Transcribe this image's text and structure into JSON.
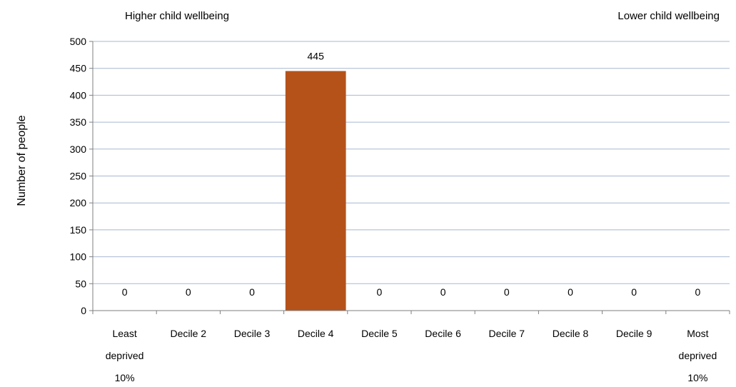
{
  "chart_data": {
    "type": "bar",
    "title": "",
    "xlabel": "",
    "ylabel": "Number of people",
    "annotations": {
      "left": "Higher child wellbeing",
      "right": "Lower child wellbeing"
    },
    "categories": [
      [
        "Least",
        "deprived",
        "10%"
      ],
      [
        "Decile 2"
      ],
      [
        "Decile 3"
      ],
      [
        "Decile 4"
      ],
      [
        "Decile 5"
      ],
      [
        "Decile 6"
      ],
      [
        "Decile 7"
      ],
      [
        "Decile 8"
      ],
      [
        "Decile 9"
      ],
      [
        "Most",
        "deprived",
        "10%"
      ]
    ],
    "values": [
      0,
      0,
      0,
      445,
      0,
      0,
      0,
      0,
      0,
      0
    ],
    "data_labels": [
      "0",
      "0",
      "0",
      "445",
      "0",
      "0",
      "0",
      "0",
      "0",
      "0"
    ],
    "ylim": [
      0,
      500
    ],
    "yticks": [
      0,
      50,
      100,
      150,
      200,
      250,
      300,
      350,
      400,
      450,
      500
    ],
    "grid": true,
    "bar_color": "#b5521a",
    "grid_color": "#a7b8d1",
    "axis_color": "#7f7f7f"
  }
}
